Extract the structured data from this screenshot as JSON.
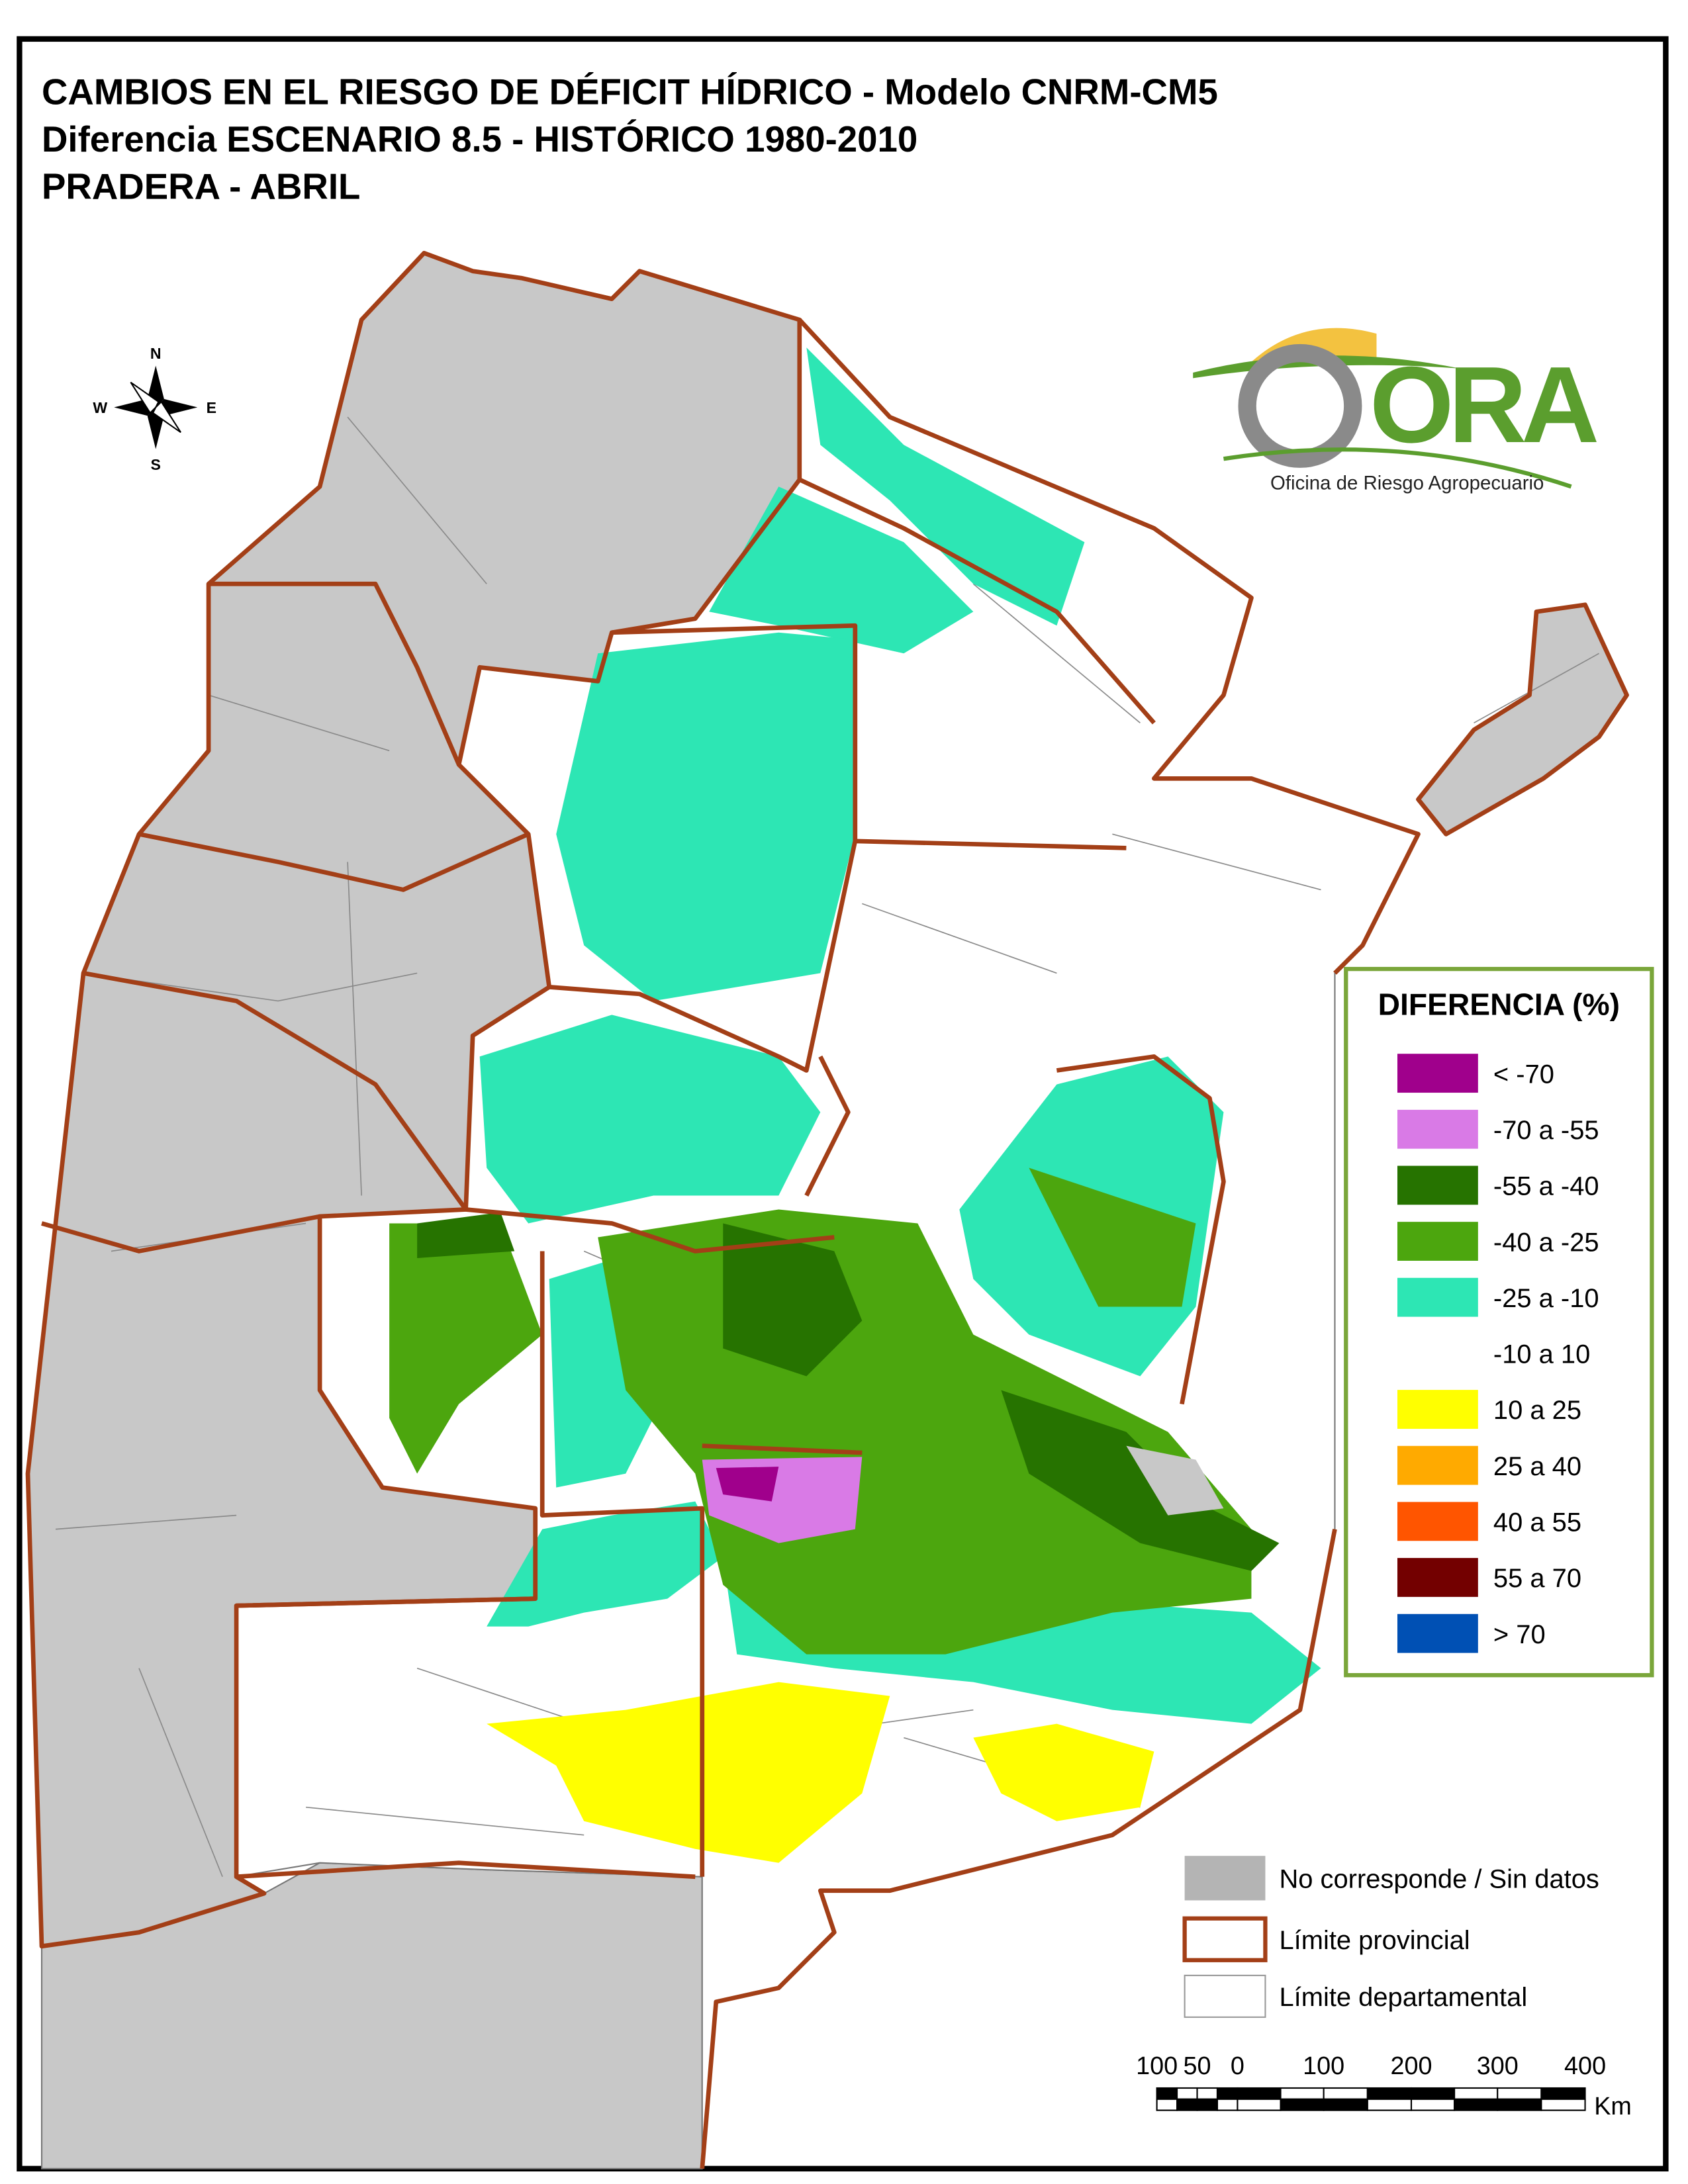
{
  "title": [
    "CAMBIOS EN EL RIESGO DE DÉFICIT HÍDRICO - Modelo CNRM-CM5",
    "Diferencia ESCENARIO 8.5 - HISTÓRICO 1980-2010",
    "PRADERA - ABRIL"
  ],
  "compass": {
    "north": "N",
    "west": "W",
    "east": "E",
    "south": "S"
  },
  "logo": {
    "name": "ORA",
    "subtitle": "Oficina de Riesgo Agropecuario"
  },
  "legend": {
    "title": "DIFERENCIA (%)",
    "items": [
      {
        "label": "< -70",
        "color": "#a0008c"
      },
      {
        "label": "-70 a -55",
        "color": "#d97ae6"
      },
      {
        "label": "-55 a -40",
        "color": "#267300"
      },
      {
        "label": "-40 a -25",
        "color": "#4ca60e"
      },
      {
        "label": "-25 a -10",
        "color": "#2de6b4"
      },
      {
        "label": "-10 a 10",
        "color": "#ffffff"
      },
      {
        "label": "10 a 25",
        "color": "#ffff00"
      },
      {
        "label": "25 a 40",
        "color": "#ffaa00"
      },
      {
        "label": "40 a 55",
        "color": "#ff5500"
      },
      {
        "label": "55 a 70",
        "color": "#730000"
      },
      {
        "label": "> 70",
        "color": "#0050b4"
      }
    ]
  },
  "reference": [
    {
      "label": "No corresponde / Sin datos"
    },
    {
      "label": "Límite provincial"
    },
    {
      "label": "Límite departamental"
    }
  ],
  "scale_bar": {
    "labels": [
      100,
      50,
      0,
      100,
      200,
      300,
      400
    ],
    "unit": "Km"
  }
}
